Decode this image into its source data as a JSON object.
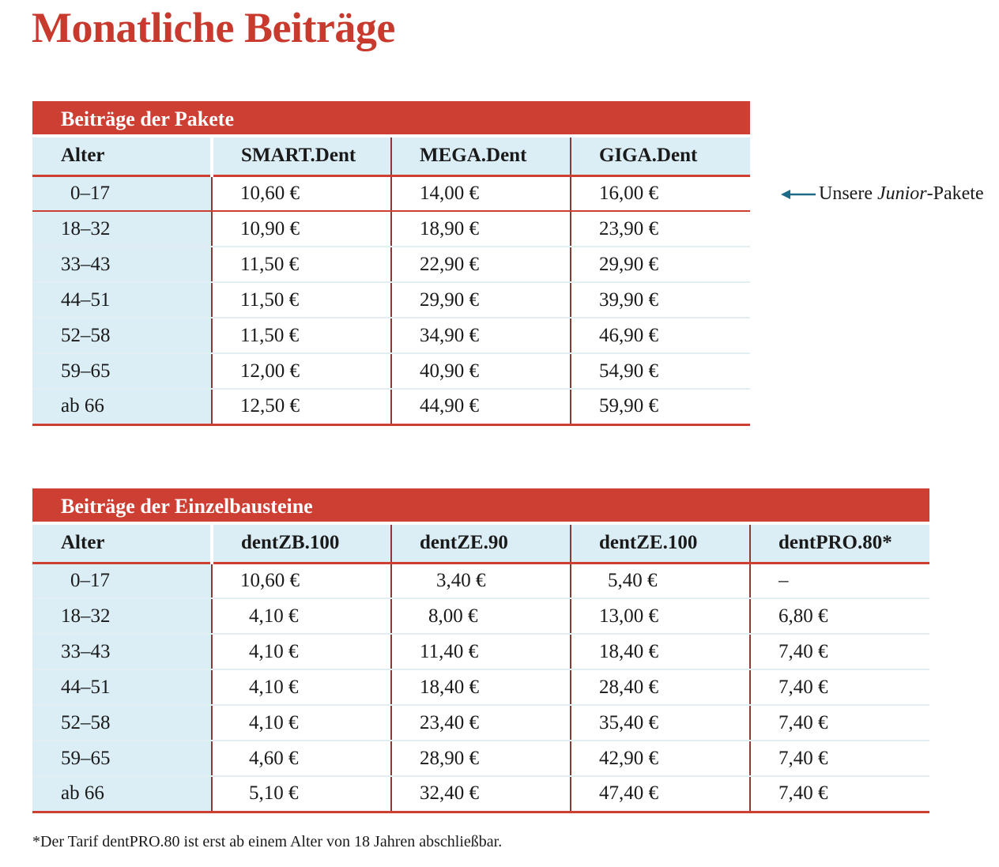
{
  "title": "Monatliche Beiträge",
  "colors": {
    "accent": "#cd3f33",
    "header_bg": "#dbeef6",
    "note_arrow": "#1f6a86"
  },
  "pakete": {
    "heading": "Beiträge der Pakete",
    "columns": [
      "Alter",
      "SMART.Dent",
      "MEGA.Dent",
      "GIGA.Dent"
    ],
    "rows": [
      [
        "0–17",
        "10,60 €",
        "14,00 €",
        "16,00 €"
      ],
      [
        "18–32",
        "10,90 €",
        "18,90 €",
        "23,90 €"
      ],
      [
        "33–43",
        "11,50 €",
        "22,90 €",
        "29,90 €"
      ],
      [
        "44–51",
        "11,50 €",
        "29,90 €",
        "39,90 €"
      ],
      [
        "52–58",
        "11,50 €",
        "34,90 €",
        "46,90 €"
      ],
      [
        "59–65",
        "12,00 €",
        "40,90 €",
        "54,90 €"
      ],
      [
        "ab 66",
        "12,50 €",
        "44,90 €",
        "59,90 €"
      ]
    ]
  },
  "junior_note": {
    "icon": "arrow-left-icon",
    "prefix": "Unsere ",
    "emphasis": "Junior",
    "suffix": "-Pakete"
  },
  "einzelbausteine": {
    "heading": "Beiträge der Einzelbausteine",
    "columns": [
      "Alter",
      "dentZB.100",
      "dentZE.90",
      "dentZE.100",
      "dentPRO.80*"
    ],
    "rows": [
      [
        "0–17",
        "10,60 €",
        "3,40 €",
        "5,40 €",
        "–"
      ],
      [
        "18–32",
        "4,10 €",
        "8,00 €",
        "13,00 €",
        "6,80 €"
      ],
      [
        "33–43",
        "4,10 €",
        "11,40 €",
        "18,40 €",
        "7,40 €"
      ],
      [
        "44–51",
        "4,10 €",
        "18,40 €",
        "28,40 €",
        "7,40 €"
      ],
      [
        "52–58",
        "4,10 €",
        "23,40 €",
        "35,40 €",
        "7,40 €"
      ],
      [
        "59–65",
        "4,60 €",
        "28,90 €",
        "42,90 €",
        "7,40 €"
      ],
      [
        "ab 66",
        "5,10 €",
        "32,40 €",
        "47,40 €",
        "7,40 €"
      ]
    ]
  },
  "footnote": "*Der Tarif dentPRO.80 ist erst ab einem Alter von 18 Jahren abschließbar."
}
